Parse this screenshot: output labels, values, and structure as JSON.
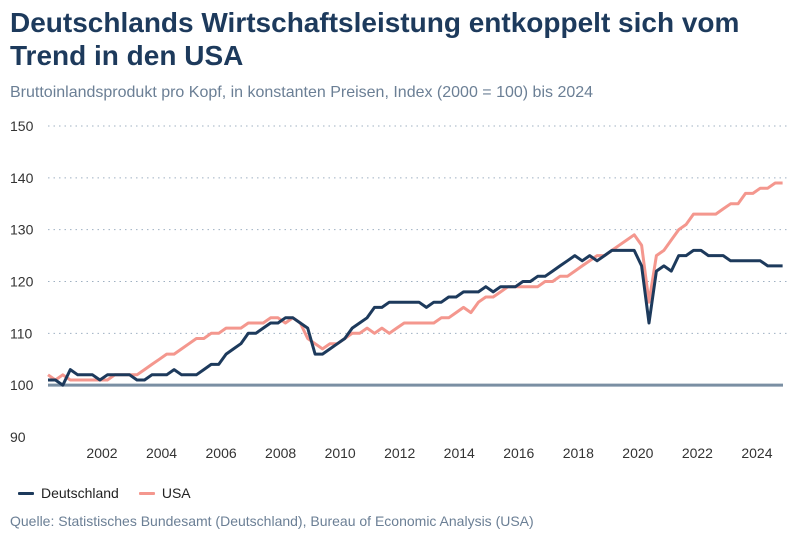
{
  "title": "Deutschlands Wirtschaftsleistung entkoppelt sich vom Trend in den USA",
  "subtitle": "Bruttoinlandsprodukt pro Kopf, in konstanten Preisen, Index (2000 = 100) bis 2024",
  "source": "Quelle: Statistisches Bundesamt (Deutschland), Bureau of Economic Analysis (USA)",
  "chart_data": {
    "type": "line",
    "title": "Deutschlands Wirtschaftsleistung entkoppelt sich vom Trend in den USA",
    "subtitle": "Bruttoinlandsprodukt pro Kopf, in konstanten Preisen, Index (2000 = 100) bis 2024",
    "x_start": "2000Q1",
    "x_frequency": "quarterly",
    "x_ticks": [
      "2002",
      "2004",
      "2006",
      "2008",
      "2010",
      "2012",
      "2014",
      "2016",
      "2018",
      "2020",
      "2022",
      "2024"
    ],
    "y_ticks": [
      "90",
      "100",
      "110",
      "120",
      "130",
      "140",
      "150"
    ],
    "ylim": [
      90,
      150
    ],
    "grid": "horizontal dotted",
    "reference_line": 100,
    "legend_position": "bottom-left",
    "series": [
      {
        "name": "Deutschland",
        "color": "#1d3a5c",
        "values": [
          101,
          101,
          100,
          103,
          102,
          102,
          102,
          101,
          102,
          102,
          102,
          102,
          101,
          101,
          102,
          102,
          102,
          103,
          102,
          102,
          102,
          103,
          104,
          104,
          106,
          107,
          108,
          110,
          110,
          111,
          112,
          112,
          113,
          113,
          112,
          111,
          106,
          106,
          107,
          108,
          109,
          111,
          112,
          113,
          115,
          115,
          116,
          116,
          116,
          116,
          116,
          115,
          116,
          116,
          117,
          117,
          118,
          118,
          118,
          119,
          118,
          119,
          119,
          119,
          120,
          120,
          121,
          121,
          122,
          123,
          124,
          125,
          124,
          125,
          124,
          125,
          126,
          126,
          126,
          126,
          123,
          112,
          122,
          123,
          122,
          125,
          125,
          126,
          126,
          125,
          125,
          125,
          124,
          124,
          124,
          124,
          124,
          123,
          123,
          123
        ]
      },
      {
        "name": "USA",
        "color": "#f4978e",
        "values": [
          102,
          101,
          102,
          101,
          101,
          101,
          101,
          101,
          101,
          102,
          102,
          102,
          102,
          103,
          104,
          105,
          106,
          106,
          107,
          108,
          109,
          109,
          110,
          110,
          111,
          111,
          111,
          112,
          112,
          112,
          113,
          113,
          112,
          113,
          112,
          109,
          108,
          107,
          108,
          108,
          109,
          110,
          110,
          111,
          110,
          111,
          110,
          111,
          112,
          112,
          112,
          112,
          112,
          113,
          113,
          114,
          115,
          114,
          116,
          117,
          117,
          118,
          119,
          119,
          119,
          119,
          119,
          120,
          120,
          121,
          121,
          122,
          123,
          124,
          125,
          125,
          126,
          127,
          128,
          129,
          127,
          116,
          125,
          126,
          128,
          130,
          131,
          133,
          133,
          133,
          133,
          134,
          135,
          135,
          137,
          137,
          138,
          138,
          139,
          139
        ]
      }
    ]
  }
}
